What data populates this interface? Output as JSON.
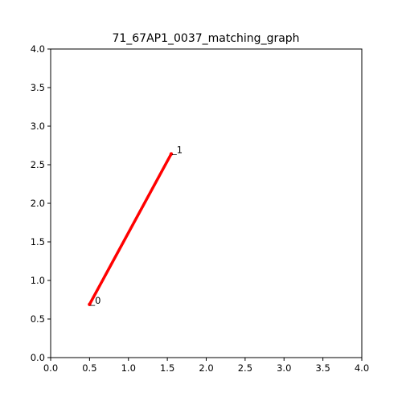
{
  "chart_data": {
    "type": "line",
    "title": "71_67AP1_0037_matching_graph",
    "xlabel": "",
    "ylabel": "",
    "xlim": [
      0,
      4
    ],
    "ylim": [
      0,
      4
    ],
    "grid": false,
    "x_ticks": [
      "0.0",
      "0.5",
      "1.0",
      "1.5",
      "2.0",
      "2.5",
      "3.0",
      "3.5",
      "4.0"
    ],
    "y_ticks": [
      "0.0",
      "0.5",
      "1.0",
      "1.5",
      "2.0",
      "2.5",
      "3.0",
      "3.5",
      "4.0"
    ],
    "nodes": [
      {
        "label": "_0",
        "x": 0.5,
        "y": 0.69
      },
      {
        "label": "_1",
        "x": 1.55,
        "y": 2.64
      }
    ],
    "edges": [
      {
        "from": 0,
        "to": 1,
        "color": "#ff0000"
      }
    ],
    "series": [
      {
        "x": [
          0.5,
          1.55
        ],
        "y": [
          0.69,
          2.64
        ],
        "color": "#ff0000"
      }
    ]
  }
}
